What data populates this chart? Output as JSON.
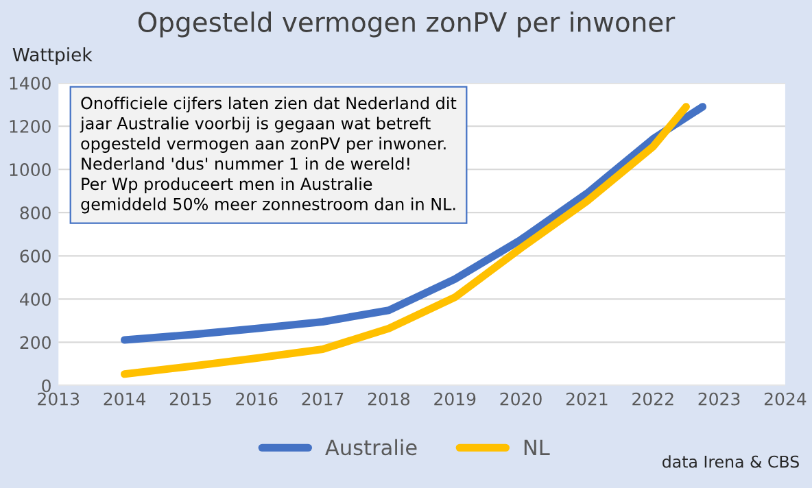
{
  "chart_data": {
    "type": "line",
    "title": "Opgesteld vermogen zonPV per inwoner",
    "ylabel": "Wattpiek",
    "series": [
      {
        "name": "Australie",
        "color": "#4472c4",
        "x": [
          2014,
          2015,
          2016,
          2017,
          2018,
          2019,
          2020,
          2021,
          2022,
          2022.75
        ],
        "values": [
          211,
          235,
          264,
          295,
          348,
          492,
          675,
          889,
          1141,
          1290
        ]
      },
      {
        "name": "NL",
        "color": "#ffc000",
        "x": [
          2014,
          2015,
          2016,
          2017,
          2018,
          2019,
          2020,
          2021,
          2022,
          2022.5
        ],
        "values": [
          53,
          89,
          127,
          168,
          264,
          408,
          636,
          853,
          1105,
          1290
        ]
      }
    ],
    "xlim": [
      2013,
      2024
    ],
    "xticks": [
      2013,
      2014,
      2015,
      2016,
      2017,
      2018,
      2019,
      2020,
      2021,
      2022,
      2023,
      2024
    ],
    "ylim": [
      0,
      1400
    ],
    "yticks": [
      0,
      200,
      400,
      600,
      800,
      1000,
      1200,
      1400
    ],
    "grid": "y",
    "legend": "bottom",
    "marker": "none",
    "line_style": "solid",
    "annotations": [
      "Onofficiele cijfers laten zien dat Nederland dit\njaar Australie voorbij is gegaan wat betreft\nopgesteld vermogen aan zonPV per inwoner.\nNederland 'dus' nummer 1 in de wereld!\nPer Wp produceert men in Australie\ngemiddeld 50% meer zonnestroom dan in NL.",
      "data Irena & CBS"
    ]
  }
}
